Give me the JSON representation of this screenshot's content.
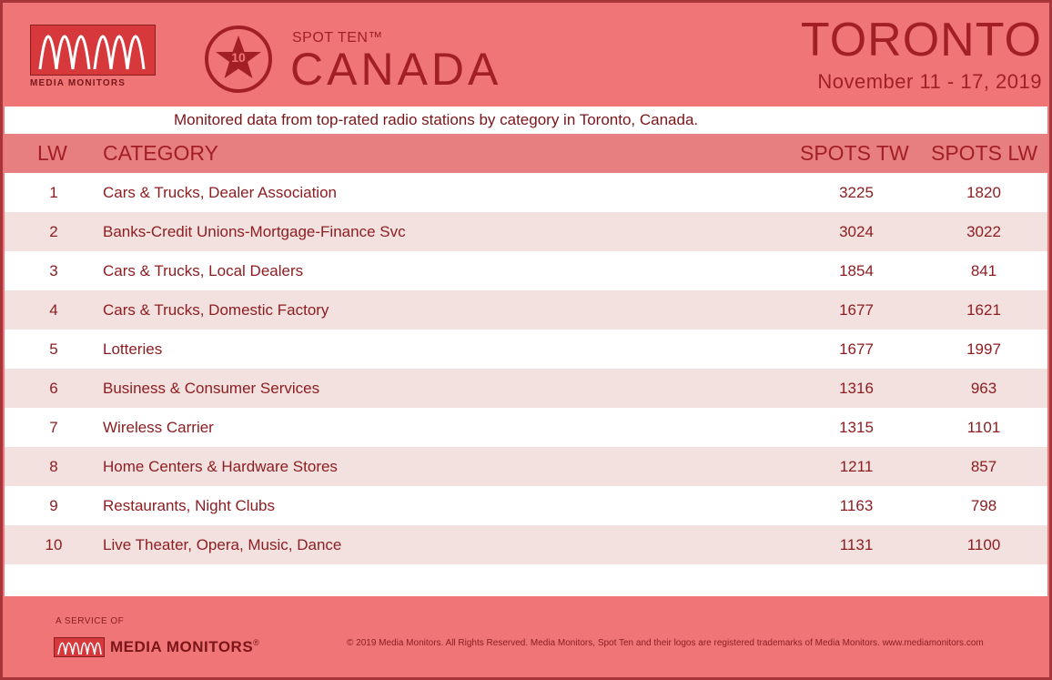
{
  "header": {
    "logo_text": "MEDIA MONITORS",
    "badge_number": "10",
    "spot_ten": "SPOT TEN™",
    "country": "CANADA",
    "city": "TORONTO",
    "date_range": "November 11 - 17, 2019"
  },
  "subtitle": "Monitored data from top-rated radio stations by category in Toronto, Canada.",
  "table": {
    "columns": [
      "LW",
      "CATEGORY",
      "SPOTS TW",
      "SPOTS LW"
    ],
    "rows": [
      {
        "rank": "1",
        "category": "Cars & Trucks, Dealer Association",
        "spots_tw": "3225",
        "spots_lw": "1820"
      },
      {
        "rank": "2",
        "category": "Banks-Credit Unions-Mortgage-Finance Svc",
        "spots_tw": "3024",
        "spots_lw": "3022"
      },
      {
        "rank": "3",
        "category": "Cars & Trucks, Local Dealers",
        "spots_tw": "1854",
        "spots_lw": "841"
      },
      {
        "rank": "4",
        "category": "Cars & Trucks, Domestic Factory",
        "spots_tw": "1677",
        "spots_lw": "1621"
      },
      {
        "rank": "5",
        "category": "Lotteries",
        "spots_tw": "1677",
        "spots_lw": "1997"
      },
      {
        "rank": "6",
        "category": "Business & Consumer Services",
        "spots_tw": "1316",
        "spots_lw": "963"
      },
      {
        "rank": "7",
        "category": "Wireless Carrier",
        "spots_tw": "1315",
        "spots_lw": "1101"
      },
      {
        "rank": "8",
        "category": "Home Centers & Hardware Stores",
        "spots_tw": "1211",
        "spots_lw": "857"
      },
      {
        "rank": "9",
        "category": "Restaurants, Night Clubs",
        "spots_tw": "1163",
        "spots_lw": "798"
      },
      {
        "rank": "10",
        "category": "Live Theater, Opera, Music, Dance",
        "spots_tw": "1131",
        "spots_lw": "1100"
      }
    ]
  },
  "footer": {
    "service_of": "A SERVICE OF",
    "logo_text": "MEDIA MONITORS",
    "registered_mark": "®",
    "copyright": "© 2019 Media Monitors. All Rights Reserved. Media Monitors, Spot Ten and their logos are registered trademarks of Media Monitors. www.mediamonitors.com"
  },
  "colors": {
    "background": "#f07577",
    "text_dark_red": "#a31f26",
    "row_alt": "#f3e1df",
    "header_band": "#e77e7f"
  }
}
